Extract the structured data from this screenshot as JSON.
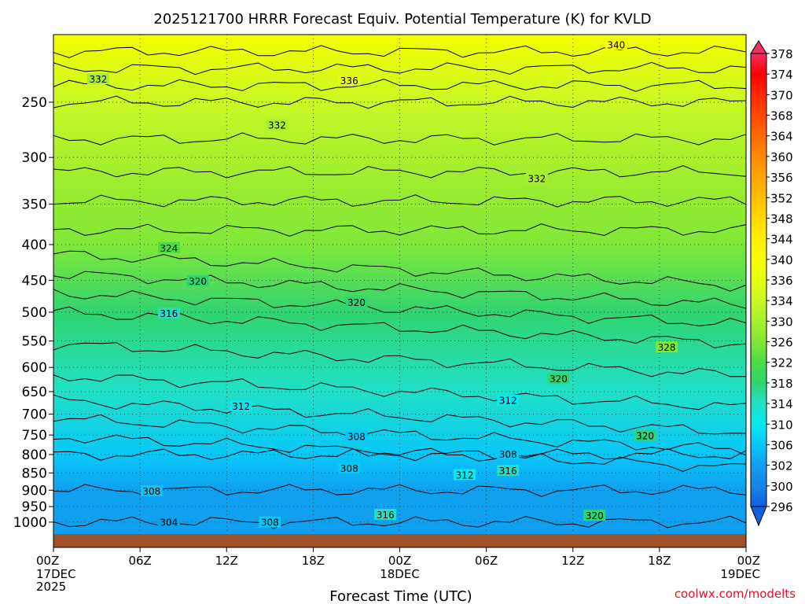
{
  "chart_data": {
    "type": "heatmap",
    "title": "2025121700 HRRR Forecast Equiv. Potential Temperature (K) for KVLD",
    "xlabel": "Forecast Time (UTC)",
    "ylabel": "",
    "credit": "coolwx.com/modelts",
    "x_ticks": [
      {
        "label": "00Z",
        "sub": [
          "17DEC",
          "2025"
        ],
        "hour": 0
      },
      {
        "label": "06Z",
        "sub": [],
        "hour": 6
      },
      {
        "label": "12Z",
        "sub": [],
        "hour": 12
      },
      {
        "label": "18Z",
        "sub": [],
        "hour": 18
      },
      {
        "label": "00Z",
        "sub": [
          "18DEC"
        ],
        "hour": 24
      },
      {
        "label": "06Z",
        "sub": [],
        "hour": 30
      },
      {
        "label": "12Z",
        "sub": [],
        "hour": 36
      },
      {
        "label": "18Z",
        "sub": [],
        "hour": 42
      },
      {
        "label": "00Z",
        "sub": [
          "19DEC"
        ],
        "hour": 48
      }
    ],
    "xlim": [
      0,
      48
    ],
    "y_ticks": [
      "250",
      "300",
      "350",
      "400",
      "450",
      "500",
      "550",
      "600",
      "650",
      "700",
      "750",
      "800",
      "850",
      "900",
      "950",
      "1000"
    ],
    "y_tick_values": [
      250,
      300,
      350,
      400,
      450,
      500,
      550,
      600,
      650,
      700,
      750,
      800,
      850,
      900,
      950,
      1000
    ],
    "ylim": [
      200,
      1040
    ],
    "y_scale": "log",
    "y_inverted": true,
    "grid": true,
    "legend": "right colorbar",
    "colorbar": {
      "labels": [
        "378",
        "374",
        "370",
        "368",
        "364",
        "360",
        "356",
        "352",
        "348",
        "344",
        "340",
        "336",
        "334",
        "330",
        "326",
        "322",
        "318",
        "314",
        "310",
        "306",
        "302",
        "300",
        "296"
      ],
      "colors": [
        "#f0305e",
        "#ff0000",
        "#ff2a00",
        "#ff4800",
        "#ff6a00",
        "#ff8a00",
        "#ffa400",
        "#ffbe00",
        "#ffd800",
        "#fff000",
        "#f6ff00",
        "#e6ff10",
        "#caf824",
        "#a8f02c",
        "#80e838",
        "#4cdc44",
        "#30d470",
        "#20e0c8",
        "#08e8f0",
        "#08c8f8",
        "#10a0f0",
        "#1884e8",
        "#1060e0"
      ]
    },
    "theta_e_levels": [
      {
        "p": 200,
        "k": 342
      },
      {
        "p": 250,
        "k": 334
      },
      {
        "p": 300,
        "k": 331
      },
      {
        "p": 400,
        "k": 325
      },
      {
        "p": 500,
        "k": 318
      },
      {
        "p": 650,
        "k": 313
      },
      {
        "p": 800,
        "k": 306
      },
      {
        "p": 900,
        "k": 304
      },
      {
        "p": 1000,
        "k": 302
      }
    ],
    "contour_labels": [
      {
        "text": "340",
        "hour": 39,
        "p": 207
      },
      {
        "text": "336",
        "hour": 20.5,
        "p": 233
      },
      {
        "text": "332",
        "hour": 3.1,
        "p": 232
      },
      {
        "text": "332",
        "hour": 15.5,
        "p": 270
      },
      {
        "text": "332",
        "hour": 33.5,
        "p": 322
      },
      {
        "text": "324",
        "hour": 8,
        "p": 405
      },
      {
        "text": "320",
        "hour": 10,
        "p": 452
      },
      {
        "text": "320",
        "hour": 21,
        "p": 485
      },
      {
        "text": "316",
        "hour": 8,
        "p": 503
      },
      {
        "text": "328",
        "hour": 42.5,
        "p": 562
      },
      {
        "text": "320",
        "hour": 35,
        "p": 624
      },
      {
        "text": "312",
        "hour": 13,
        "p": 683
      },
      {
        "text": "312",
        "hour": 31.5,
        "p": 670
      },
      {
        "text": "308",
        "hour": 21,
        "p": 755
      },
      {
        "text": "308",
        "hour": 20.5,
        "p": 838
      },
      {
        "text": "312",
        "hour": 28.5,
        "p": 857
      },
      {
        "text": "316",
        "hour": 31.5,
        "p": 845
      },
      {
        "text": "308",
        "hour": 31.5,
        "p": 800
      },
      {
        "text": "320",
        "hour": 41,
        "p": 753
      },
      {
        "text": "308",
        "hour": 6.8,
        "p": 904
      },
      {
        "text": "316",
        "hour": 23,
        "p": 977
      },
      {
        "text": "320",
        "hour": 37.5,
        "p": 980
      },
      {
        "text": "304",
        "hour": 8,
        "p": 1002
      },
      {
        "text": "308",
        "hour": 15,
        "p": 1002
      }
    ]
  }
}
